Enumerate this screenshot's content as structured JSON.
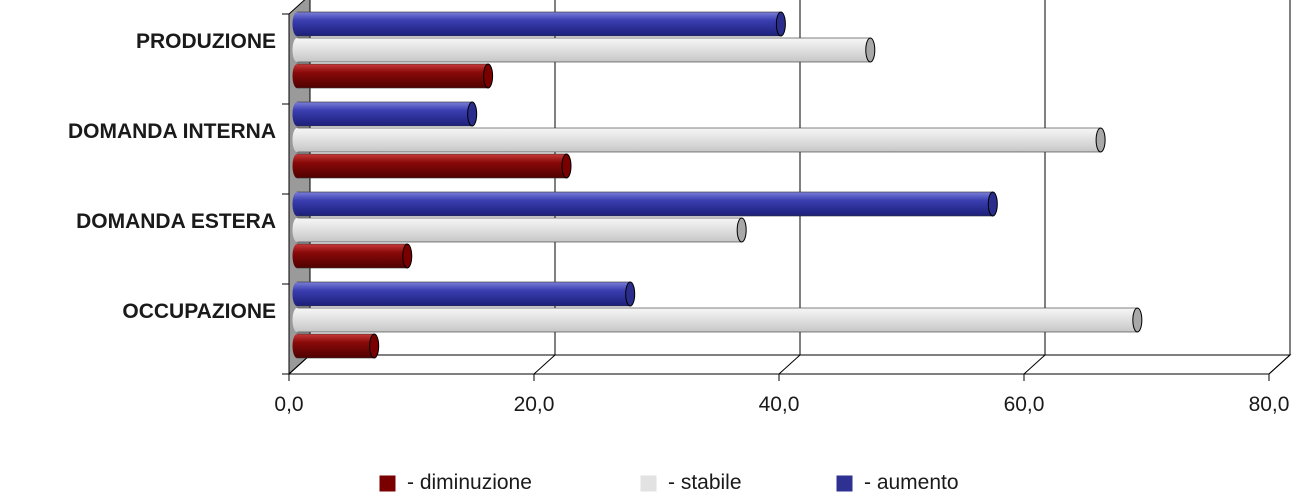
{
  "chart_data": {
    "type": "bar",
    "orientation": "horizontal",
    "categories": [
      "PRODUZIONE",
      "DOMANDA INTERNA",
      "DOMANDA ESTERA",
      "OCCUPAZIONE"
    ],
    "series": [
      {
        "name": "- aumento",
        "color": "#2e3192",
        "values": [
          39.5,
          14.3,
          56.8,
          27.2
        ]
      },
      {
        "name": "- stabile",
        "color": "#e2e2e2",
        "values": [
          46.8,
          65.6,
          36.3,
          68.6
        ]
      },
      {
        "name": "- diminuzione",
        "color": "#7a0000",
        "values": [
          15.6,
          22.0,
          9.0,
          6.3
        ]
      }
    ],
    "legend_order": [
      "- diminuzione",
      "- stabile",
      "- aumento"
    ],
    "xlim": [
      0,
      80
    ],
    "xticks": [
      "0,0",
      "20,0",
      "40,0",
      "60,0",
      "80,0"
    ],
    "tick_values": [
      0,
      20,
      40,
      60,
      80
    ],
    "grid": true,
    "legend_position": "bottom",
    "title": "",
    "xlabel": "",
    "ylabel": ""
  }
}
